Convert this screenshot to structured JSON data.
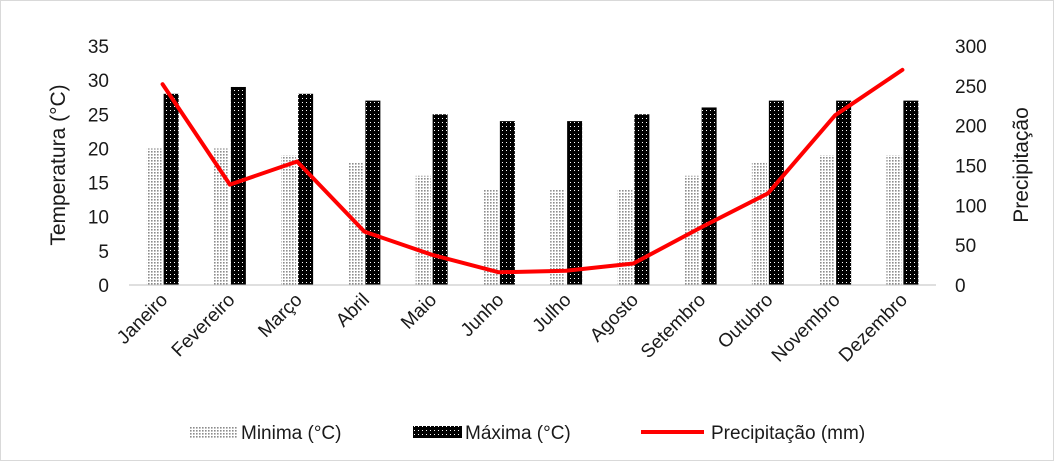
{
  "chart_data": {
    "type": "bar",
    "categories": [
      "Janeiro",
      "Fevereiro",
      "Março",
      "Abril",
      "Maio",
      "Junho",
      "Julho",
      "Agosto",
      "Setembro",
      "Outubro",
      "Novembro",
      "Dezembro"
    ],
    "series": [
      {
        "name": "Minima (°C)",
        "type": "bar",
        "axis": "left",
        "values": [
          20,
          20,
          19,
          18,
          16,
          14,
          14,
          14,
          16,
          18,
          19,
          19
        ]
      },
      {
        "name": "Máxima (°C)",
        "type": "bar",
        "axis": "left",
        "values": [
          28,
          29,
          28,
          27,
          25,
          24,
          24,
          25,
          26,
          27,
          27,
          27
        ]
      },
      {
        "name": "Precipitação (mm)",
        "type": "line",
        "axis": "right",
        "values": [
          252,
          126,
          155,
          67,
          38,
          16,
          18,
          27,
          72,
          115,
          213,
          270
        ]
      }
    ],
    "ylabel": "Temperatura (°C)",
    "y2label": "Precipitação",
    "ylim": [
      0,
      35
    ],
    "y2lim": [
      0,
      300
    ],
    "yticks": [
      "0",
      "5",
      "10",
      "15",
      "20",
      "25",
      "30",
      "35"
    ],
    "y2ticks": [
      "0",
      "50",
      "100",
      "150",
      "200",
      "250",
      "300"
    ],
    "grid": false,
    "legend_position": "bottom",
    "colors": {
      "minima": "#b3b3b3",
      "maxima": "#000000",
      "precipitacao": "#ff0000"
    }
  }
}
